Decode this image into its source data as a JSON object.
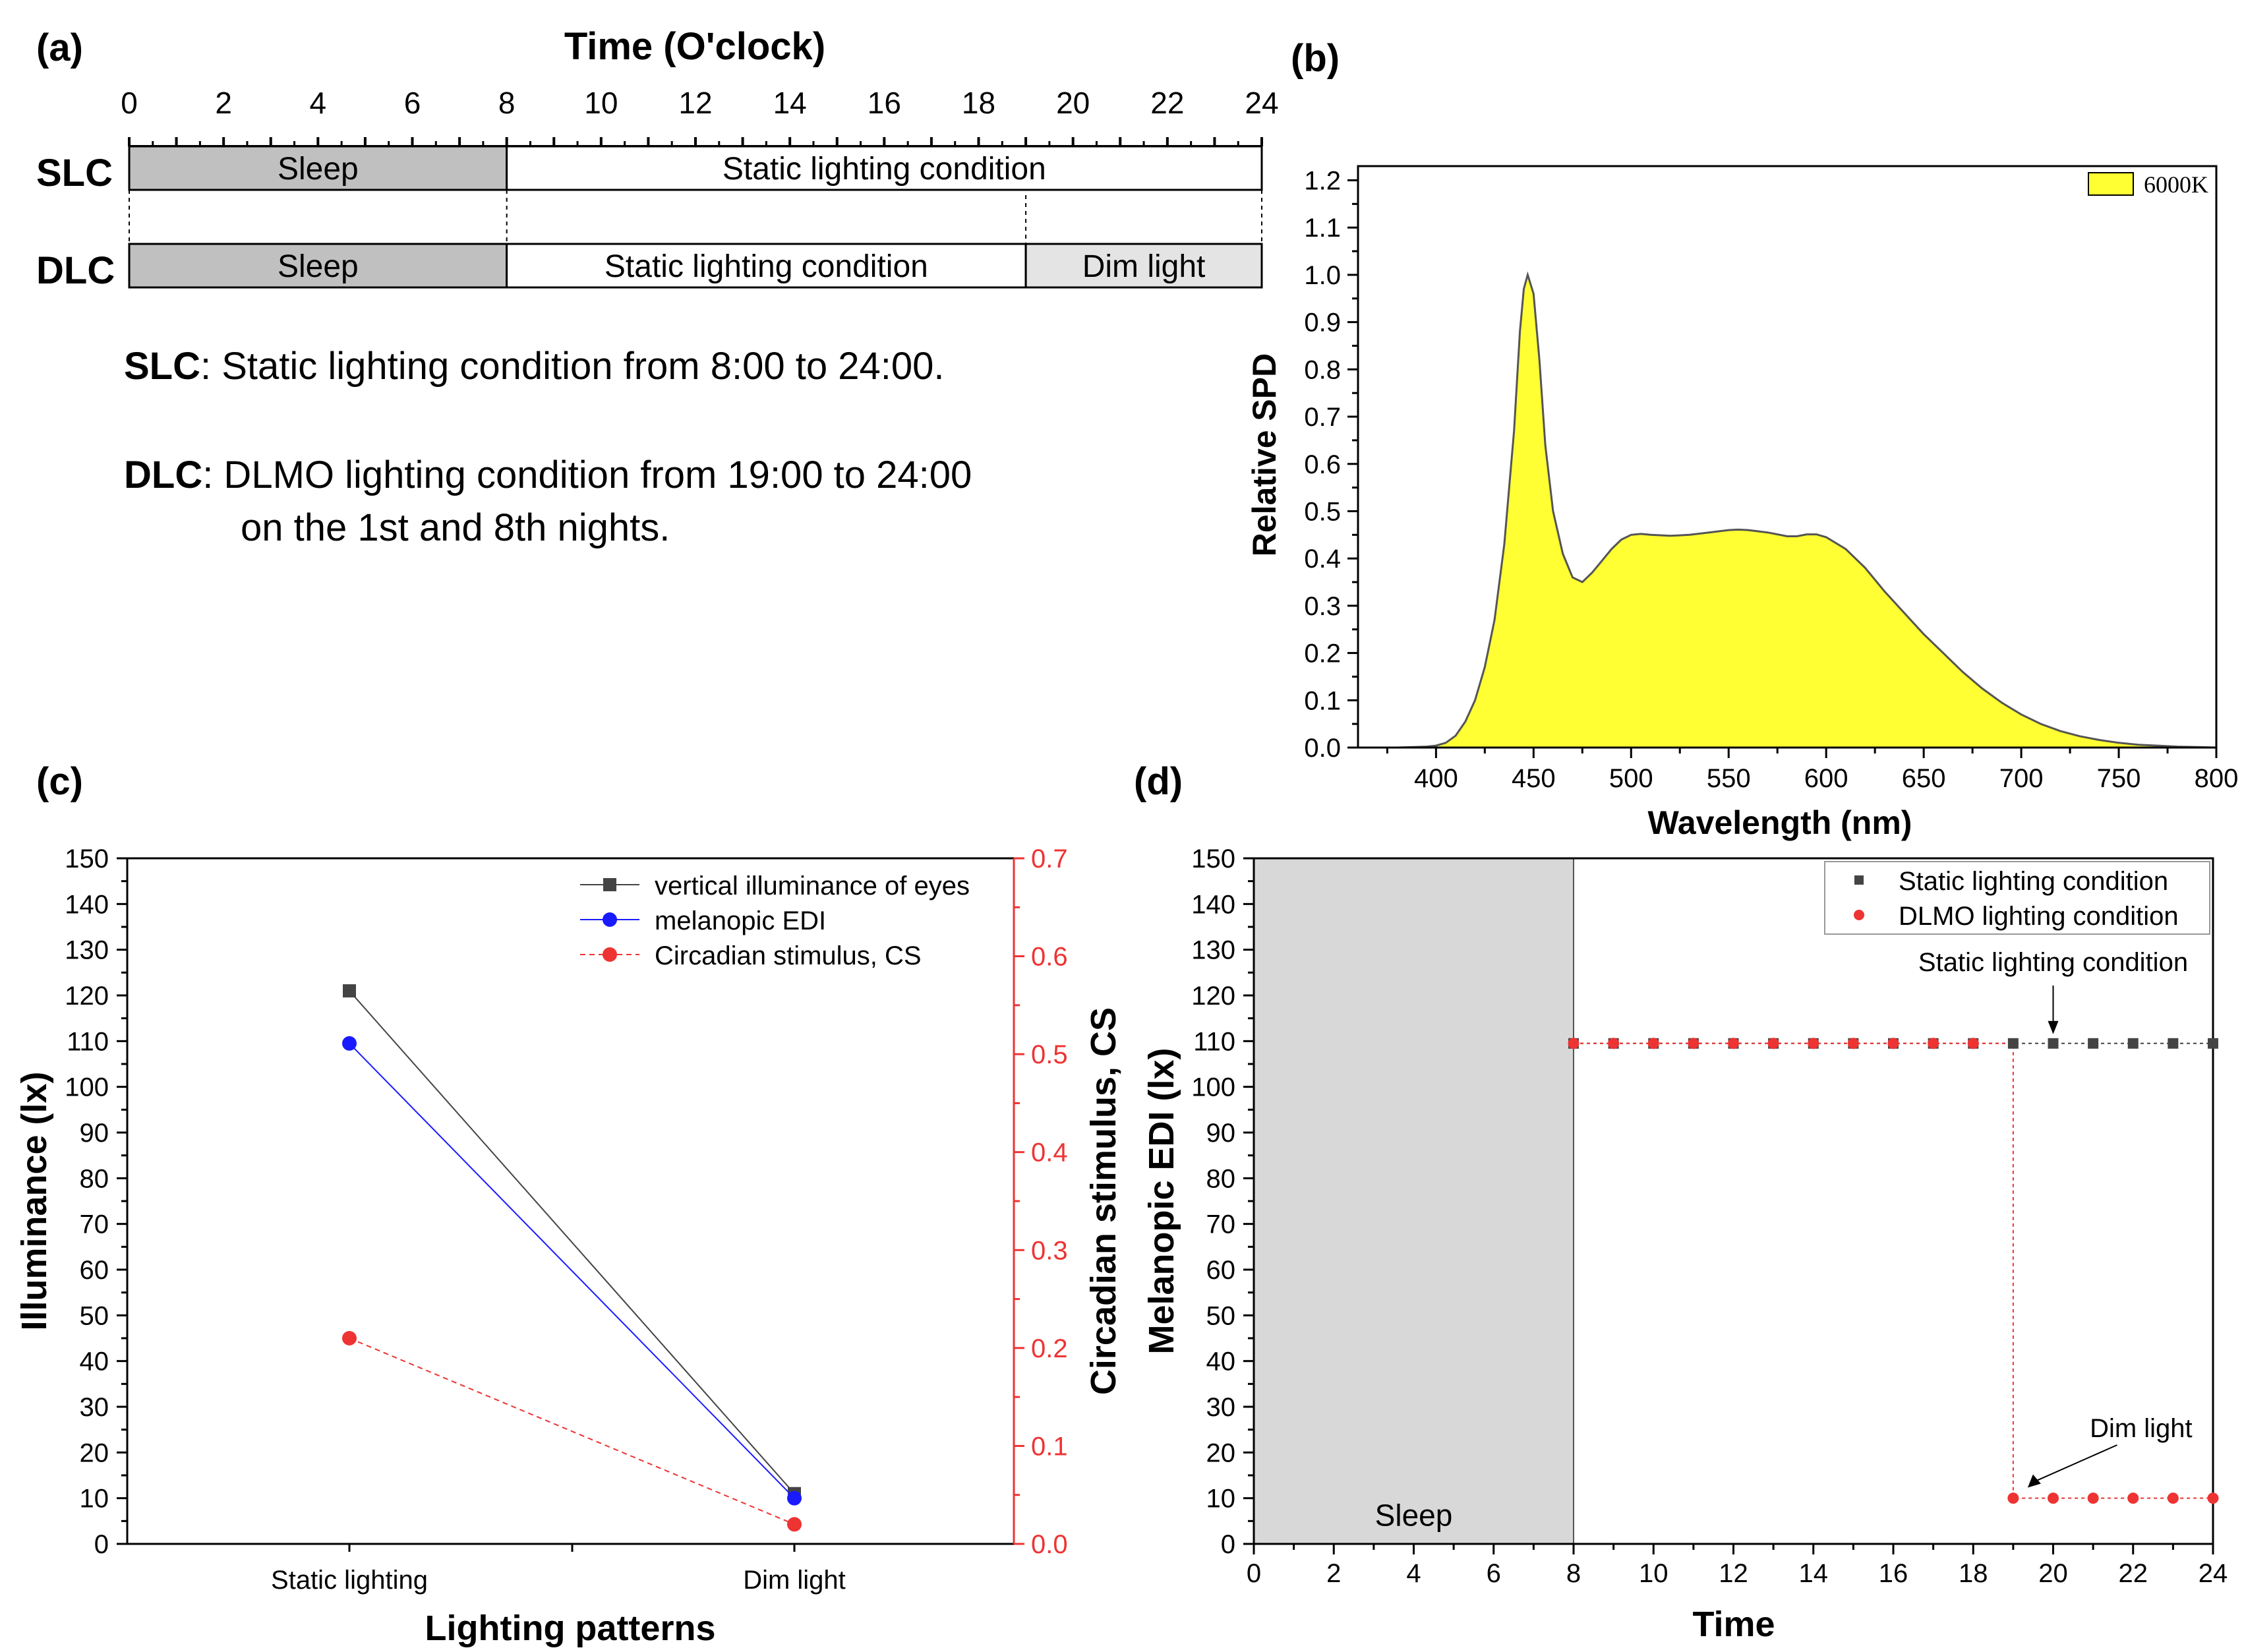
{
  "panel_labels": {
    "a": "(a)",
    "b": "(b)",
    "c": "(c)",
    "d": "(d)"
  },
  "chart_data": [
    {
      "type": "timeline",
      "panel": "(a)",
      "title": "Time (O'clock)",
      "xlim": [
        0,
        24
      ],
      "ticks": [
        "0",
        "2",
        "4",
        "6",
        "8",
        "10",
        "12",
        "14",
        "16",
        "18",
        "20",
        "22",
        "24"
      ],
      "rows": [
        {
          "label": "SLC",
          "segments": [
            {
              "start": 0,
              "end": 8,
              "text": "Sleep",
              "fill": "#c0c0c0"
            },
            {
              "start": 8,
              "end": 24,
              "text": "Static lighting condition",
              "fill": "#ffffff"
            }
          ]
        },
        {
          "label": "DLC",
          "segments": [
            {
              "start": 0,
              "end": 8,
              "text": "Sleep",
              "fill": "#c0c0c0"
            },
            {
              "start": 8,
              "end": 19,
              "text": "Static lighting condition",
              "fill": "#ffffff"
            },
            {
              "start": 19,
              "end": 24,
              "text": "Dim light",
              "fill": "#e4e4e4"
            }
          ]
        }
      ],
      "descriptions": [
        {
          "bold": "SLC",
          "text": ": Static lighting condition from 8:00 to 24:00."
        },
        {
          "bold": "DLC",
          "text": ": DLMO lighting condition from 19:00 to 24:00",
          "text2": "on the 1st and 8th nights."
        }
      ]
    },
    {
      "type": "area",
      "panel": "(b)",
      "xlabel": "Wavelength  (nm)",
      "ylabel": "Relative SPD",
      "xlim": [
        360,
        800
      ],
      "ylim": [
        0,
        1.23
      ],
      "xticks": [
        "400",
        "450",
        "500",
        "550",
        "600",
        "650",
        "700",
        "750",
        "800"
      ],
      "yticks": [
        "0.0",
        "0.1",
        "0.2",
        "0.3",
        "0.4",
        "0.5",
        "0.6",
        "0.7",
        "0.8",
        "0.9",
        "1.0",
        "1.1",
        "1.2"
      ],
      "legend": [
        "6000K"
      ],
      "fill_color": "#ffff33",
      "x": [
        360,
        380,
        395,
        400,
        405,
        410,
        415,
        420,
        425,
        430,
        435,
        440,
        443,
        445,
        447,
        450,
        453,
        456,
        460,
        465,
        470,
        475,
        480,
        485,
        490,
        495,
        500,
        505,
        510,
        520,
        530,
        540,
        550,
        555,
        560,
        570,
        580,
        585,
        590,
        595,
        600,
        610,
        620,
        630,
        640,
        650,
        660,
        670,
        680,
        690,
        700,
        710,
        720,
        730,
        740,
        750,
        760,
        770,
        780,
        790,
        800
      ],
      "y": [
        0,
        0,
        0.002,
        0.004,
        0.01,
        0.025,
        0.055,
        0.1,
        0.17,
        0.27,
        0.43,
        0.67,
        0.88,
        0.97,
        1.0,
        0.96,
        0.82,
        0.64,
        0.5,
        0.41,
        0.36,
        0.35,
        0.37,
        0.395,
        0.42,
        0.44,
        0.45,
        0.452,
        0.45,
        0.448,
        0.45,
        0.455,
        0.46,
        0.461,
        0.46,
        0.455,
        0.447,
        0.447,
        0.451,
        0.451,
        0.445,
        0.42,
        0.38,
        0.33,
        0.285,
        0.24,
        0.2,
        0.16,
        0.125,
        0.095,
        0.07,
        0.05,
        0.035,
        0.024,
        0.016,
        0.01,
        0.006,
        0.004,
        0.002,
        0.001,
        0.0
      ]
    },
    {
      "type": "line",
      "panel": "(c)",
      "xlabel": "Lighting patterns",
      "ylabel": "Illuminance (lx)",
      "y2label": "Circadian stimulus, CS",
      "categories": [
        "Static lighting",
        "Dim light"
      ],
      "ylim": [
        0,
        150
      ],
      "y2lim": [
        0,
        0.7
      ],
      "yticks": [
        "0",
        "10",
        "20",
        "30",
        "40",
        "50",
        "60",
        "70",
        "80",
        "90",
        "100",
        "110",
        "120",
        "130",
        "140",
        "150"
      ],
      "y2ticks": [
        "0.0",
        "0.1",
        "0.2",
        "0.3",
        "0.4",
        "0.5",
        "0.6",
        "0.7"
      ],
      "series": [
        {
          "name": "vertical illuminance of eyes",
          "values": [
            121,
            11
          ],
          "axis": "left",
          "color": "#444444",
          "marker": "square"
        },
        {
          "name": "melanopic EDI",
          "values": [
            109.5,
            10
          ],
          "axis": "left",
          "color": "#1a1aff",
          "marker": "circle"
        },
        {
          "name": "Circadian stimulus, CS",
          "values": [
            0.21,
            0.02
          ],
          "axis": "right",
          "color": "#ee3333",
          "marker": "circle",
          "dashed": true
        }
      ]
    },
    {
      "type": "scatter",
      "panel": "(d)",
      "xlabel": "Time",
      "ylabel": "Melanopic EDI (lx)",
      "xlim": [
        0,
        24
      ],
      "ylim": [
        0,
        150
      ],
      "xticks": [
        "0",
        "2",
        "4",
        "6",
        "8",
        "10",
        "12",
        "14",
        "16",
        "18",
        "20",
        "22",
        "24"
      ],
      "yticks": [
        "0",
        "10",
        "20",
        "30",
        "40",
        "50",
        "60",
        "70",
        "80",
        "90",
        "100",
        "110",
        "120",
        "130",
        "140",
        "150"
      ],
      "shaded_region": {
        "start": 0,
        "end": 8,
        "label": "Sleep"
      },
      "series": [
        {
          "name": "Static lighting condition",
          "color": "#444444",
          "marker": "square",
          "x": [
            8,
            9,
            10,
            11,
            12,
            13,
            14,
            15,
            16,
            17,
            18,
            19,
            20,
            21,
            22,
            23,
            24
          ],
          "y": [
            109.5,
            109.5,
            109.5,
            109.5,
            109.5,
            109.5,
            109.5,
            109.5,
            109.5,
            109.5,
            109.5,
            109.5,
            109.5,
            109.5,
            109.5,
            109.5,
            109.5
          ]
        },
        {
          "name": "DLMO lighting condition",
          "color": "#ee3333",
          "marker": "circle",
          "x": [
            8,
            9,
            10,
            11,
            12,
            13,
            14,
            15,
            16,
            17,
            18,
            19,
            20,
            21,
            22,
            23,
            24
          ],
          "y": [
            109.5,
            109.5,
            109.5,
            109.5,
            109.5,
            109.5,
            109.5,
            109.5,
            109.5,
            109.5,
            109.5,
            10,
            10,
            10,
            10,
            10,
            10
          ]
        }
      ],
      "annotations": [
        {
          "text": "Static lighting condition",
          "x": 20,
          "y": 109.5
        },
        {
          "text": "Dim light",
          "x": 19,
          "y": 10
        }
      ]
    }
  ]
}
